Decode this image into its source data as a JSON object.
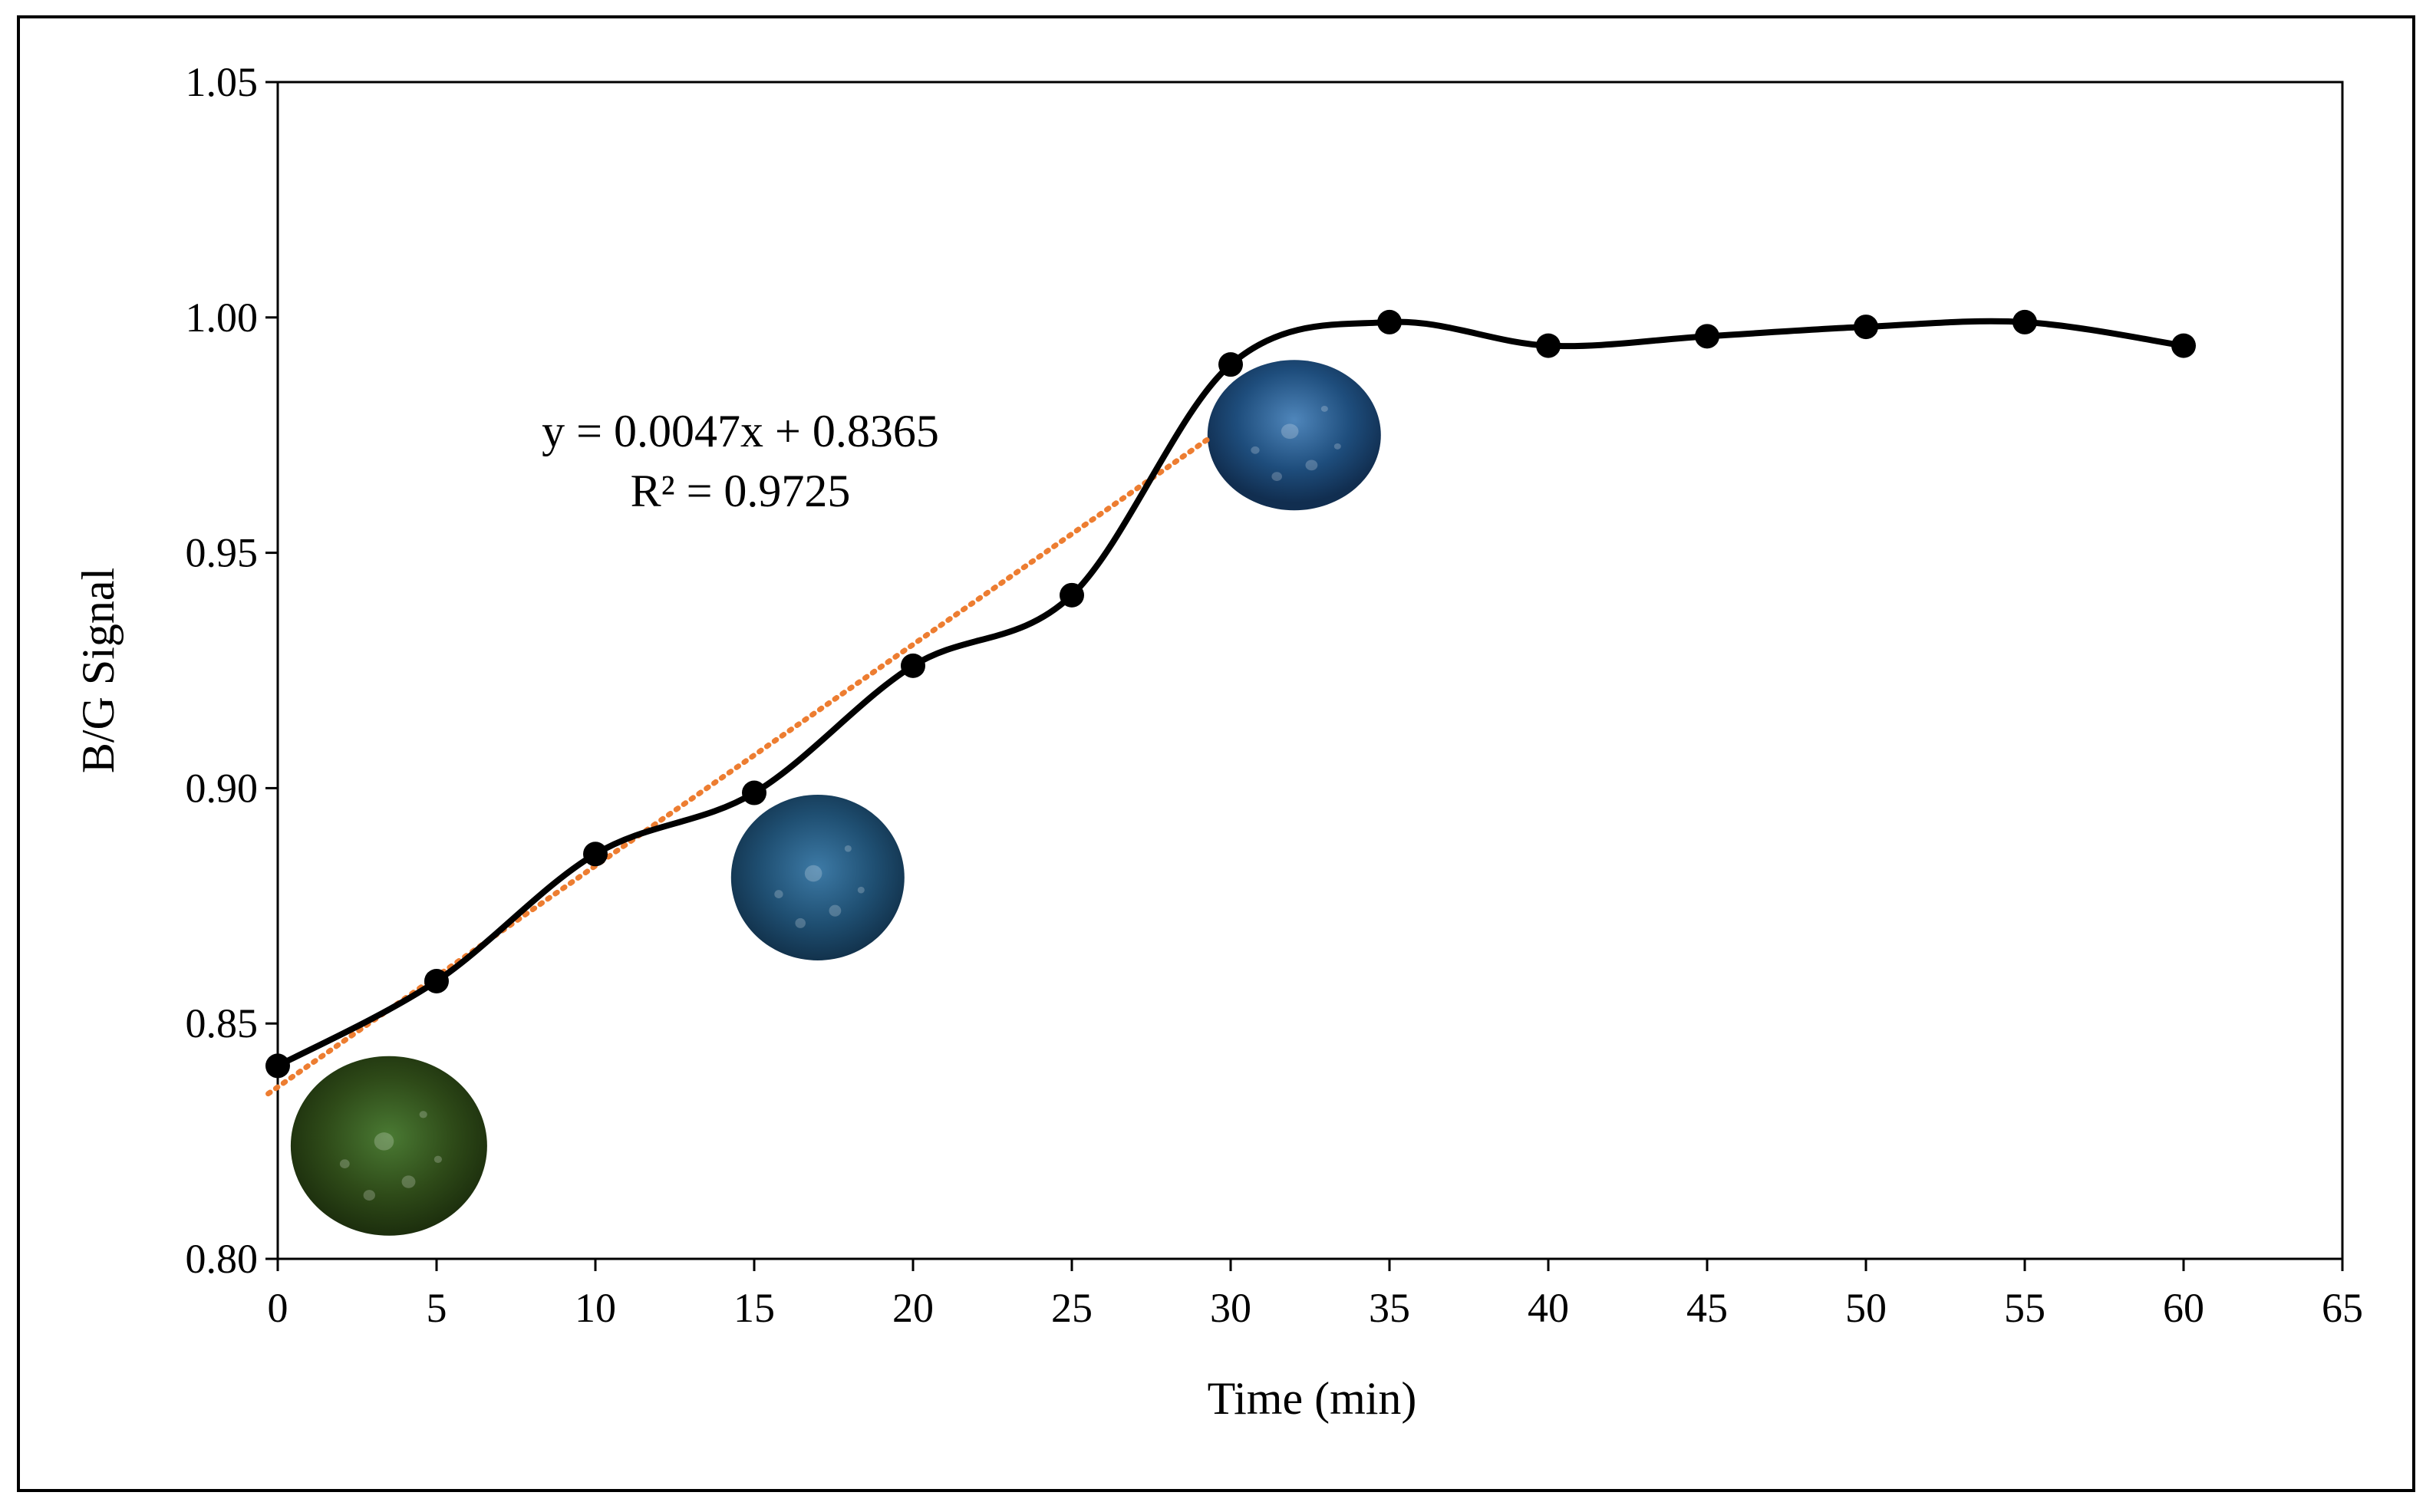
{
  "chart_data": {
    "type": "line",
    "xlabel": "Time (min)",
    "ylabel": "B/G Signal",
    "xlim": [
      0,
      65
    ],
    "ylim": [
      0.8,
      1.05
    ],
    "x_ticks": [
      "0",
      "5",
      "10",
      "15",
      "20",
      "25",
      "30",
      "35",
      "40",
      "45",
      "50",
      "55",
      "60",
      "65"
    ],
    "y_ticks": [
      "0.80",
      "0.85",
      "0.90",
      "0.95",
      "1.00",
      "1.05"
    ],
    "grid": false,
    "series": [
      {
        "name": "B/G Signal",
        "color": "#000000",
        "smooth": true,
        "x": [
          0,
          5,
          10,
          15,
          20,
          25,
          30,
          35,
          40,
          45,
          50,
          55,
          60
        ],
        "y": [
          0.841,
          0.859,
          0.886,
          0.899,
          0.926,
          0.941,
          0.99,
          0.999,
          0.994,
          0.996,
          0.998,
          0.999,
          0.994
        ]
      }
    ],
    "trendline": {
      "type": "linear",
      "color": "#ED7D31",
      "style": "dotted",
      "slope": 0.0047,
      "intercept": 0.8365,
      "x_range": [
        0,
        30
      ],
      "equation": "y = 0.0047x + 0.8365",
      "r_squared": "R² = 0.9725"
    },
    "insets": [
      {
        "name": "green-sample",
        "x": 3.5,
        "y": 0.824,
        "color": "#2e4a18"
      },
      {
        "name": "teal-sample",
        "x": 17,
        "y": 0.881,
        "color": "#1f4f72"
      },
      {
        "name": "blue-sample",
        "x": 32,
        "y": 0.975,
        "color": "#1e4d7c"
      }
    ]
  }
}
